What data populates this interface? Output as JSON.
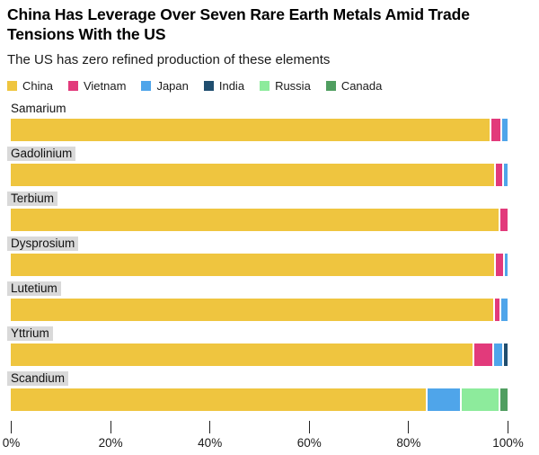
{
  "header": {
    "title": "China Has Leverage Over Seven Rare Earth Metals Amid Trade Tensions With the US",
    "subtitle": "The US has zero refined production of these elements"
  },
  "legend": [
    {
      "label": "China",
      "color": "#efc53f"
    },
    {
      "label": "Vietnam",
      "color": "#e23a7b"
    },
    {
      "label": "Japan",
      "color": "#4fa5ea"
    },
    {
      "label": "India",
      "color": "#204e6f"
    },
    {
      "label": "Russia",
      "color": "#8deb9c"
    },
    {
      "label": "Canada",
      "color": "#509e60"
    }
  ],
  "chart_data": {
    "type": "bar",
    "orientation": "horizontal-stacked",
    "unit": "percent of refined production",
    "title": "China Has Leverage Over Seven Rare Earth Metals Amid Trade Tensions With the US",
    "subtitle": "The US has zero refined production of these elements",
    "categories": [
      "Samarium",
      "Gadolinium",
      "Terbium",
      "Dysprosium",
      "Lutetium",
      "Yttrium",
      "Scandium"
    ],
    "highlighted_categories": [
      "Gadolinium",
      "Terbium",
      "Dysprosium",
      "Lutetium",
      "Yttrium",
      "Scandium"
    ],
    "series": [
      {
        "name": "China",
        "color": "#efc53f",
        "values": [
          97.0,
          98.0,
          98.6,
          98.0,
          97.8,
          94.0,
          84.5
        ]
      },
      {
        "name": "Vietnam",
        "color": "#e23a7b",
        "values": [
          1.9,
          1.2,
          1.4,
          1.4,
          1.0,
          3.7,
          0
        ]
      },
      {
        "name": "Japan",
        "color": "#4fa5ea",
        "values": [
          1.1,
          0.8,
          0,
          0.6,
          1.2,
          1.5,
          6.5
        ]
      },
      {
        "name": "India",
        "color": "#204e6f",
        "values": [
          0,
          0,
          0,
          0,
          0,
          0.8,
          0
        ]
      },
      {
        "name": "Russia",
        "color": "#8deb9c",
        "values": [
          0,
          0,
          0,
          0,
          0,
          0,
          7.5
        ]
      },
      {
        "name": "Canada",
        "color": "#509e60",
        "values": [
          0,
          0,
          0,
          0,
          0,
          0,
          1.5
        ]
      }
    ],
    "xlim": [
      0,
      100
    ],
    "x_ticks": [
      "0%",
      "20%",
      "40%",
      "60%",
      "80%",
      "100%"
    ],
    "grid": false,
    "legend_position": "top"
  }
}
